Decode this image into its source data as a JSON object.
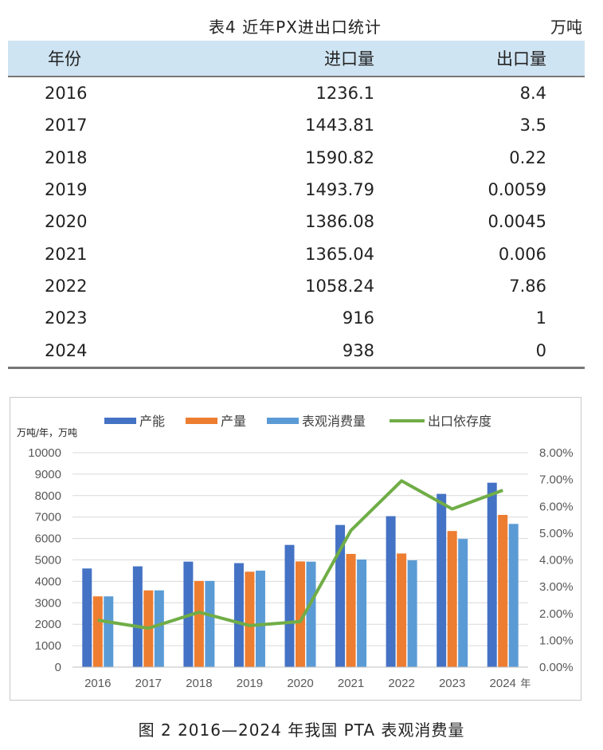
{
  "table": {
    "title": "表4  近年PX进出口统计",
    "unit": "万吨",
    "headers": [
      "年份",
      "进口量",
      "出口量"
    ],
    "rows": [
      [
        "2016",
        "1236.1",
        "8.4"
      ],
      [
        "2017",
        "1443.81",
        "3.5"
      ],
      [
        "2018",
        "1590.82",
        "0.22"
      ],
      [
        "2019",
        "1493.79",
        "0.0059"
      ],
      [
        "2020",
        "1386.08",
        "0.0045"
      ],
      [
        "2021",
        "1365.04",
        "0.006"
      ],
      [
        "2022",
        "1058.24",
        "7.86"
      ],
      [
        "2023",
        "916",
        "1"
      ],
      [
        "2024",
        "938",
        "0"
      ]
    ]
  },
  "chart_data": {
    "type": "bar",
    "title": "",
    "ylabel": "万吨/年，万吨",
    "xlabel": "年",
    "categories": [
      "2016",
      "2017",
      "2018",
      "2019",
      "2020",
      "2021",
      "2022",
      "2023",
      "2024"
    ],
    "ylim": [
      0,
      10000
    ],
    "y_ticks": [
      "0",
      "1000",
      "2000",
      "3000",
      "4000",
      "5000",
      "6000",
      "7000",
      "8000",
      "9000",
      "10000"
    ],
    "y2lim": [
      0,
      8
    ],
    "y2_ticks": [
      "0.00%",
      "1.00%",
      "2.00%",
      "3.00%",
      "4.00%",
      "5.00%",
      "6.00%",
      "7.00%",
      "8.00%"
    ],
    "legend_position": "top",
    "series": [
      {
        "name": "产能",
        "type": "bar",
        "color": "#4472c4",
        "values": [
          4600,
          4700,
          4920,
          4850,
          5700,
          6630,
          7040,
          8080,
          8600
        ]
      },
      {
        "name": "产量",
        "type": "bar",
        "color": "#ed7d31",
        "values": [
          3300,
          3580,
          4020,
          4450,
          4930,
          5280,
          5300,
          6350,
          7100
        ]
      },
      {
        "name": "表观消费量",
        "type": "bar",
        "color": "#5b9bd5",
        "values": [
          3300,
          3580,
          4020,
          4500,
          4920,
          5020,
          4980,
          5980,
          6680
        ]
      },
      {
        "name": "出口依存度",
        "type": "line",
        "axis": "right",
        "color": "#70ad47",
        "values": [
          1.75,
          1.45,
          2.05,
          1.55,
          1.7,
          5.1,
          6.95,
          5.9,
          6.6
        ]
      }
    ]
  },
  "figure_caption": "图 2  2016—2024 年我国 PTA 表观消费量"
}
